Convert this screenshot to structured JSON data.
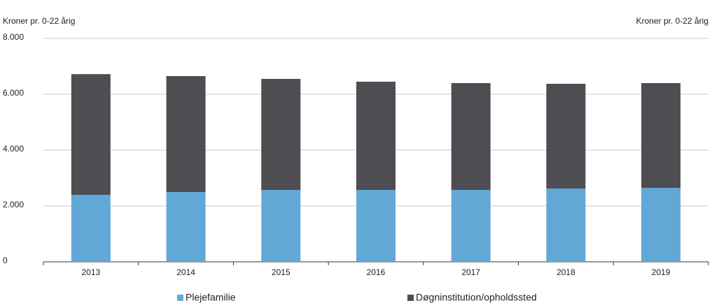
{
  "chart_data": {
    "type": "stacked_bar",
    "y_label": "Kroner pr. 0-22 årig",
    "y2_label": "Kroner pr. 0-22 årig",
    "categories": [
      "2013",
      "2014",
      "2015",
      "2016",
      "2017",
      "2018",
      "2019"
    ],
    "series": [
      {
        "name": "Plejefamilie",
        "color": "#62a8d6",
        "values": [
          2400,
          2500,
          2575,
          2575,
          2575,
          2625,
          2650
        ]
      },
      {
        "name": "Døgninstitution/opholdssted",
        "color": "#4d4d52",
        "values": [
          4320,
          4150,
          3975,
          3875,
          3825,
          3750,
          3750
        ]
      }
    ],
    "ylim": [
      0,
      8000
    ],
    "yticks": [
      0,
      {
        "value": 2000,
        "label": "2.000"
      },
      {
        "value": 4000,
        "label": "4.000"
      },
      {
        "value": 6000,
        "label": "6.000"
      },
      {
        "value": 8000,
        "label": "8.000"
      }
    ],
    "grid": true
  }
}
